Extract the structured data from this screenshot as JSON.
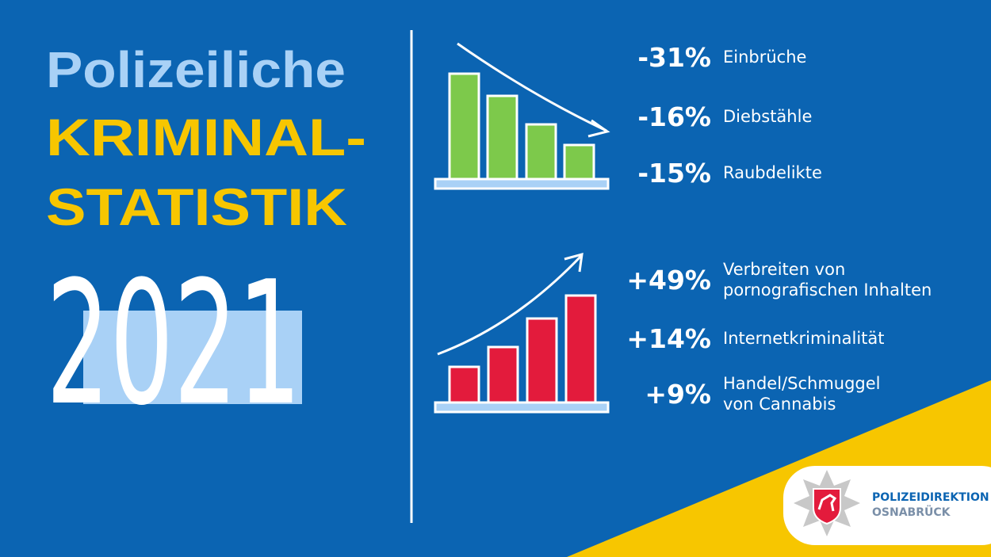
{
  "title": {
    "line1": "Polizeiliche",
    "line2": "KRIMINAL-",
    "line3": "STATISTIK",
    "year": "2021"
  },
  "decreases": [
    {
      "change": "-31%",
      "label": [
        "Einbrüche"
      ]
    },
    {
      "change": "-16%",
      "label": [
        "Diebstähle"
      ]
    },
    {
      "change": "-15%",
      "label": [
        "Raubdelikte"
      ]
    }
  ],
  "increases": [
    {
      "change": "+49%",
      "label": [
        "Verbreiten von",
        "pornografischen Inhalten"
      ]
    },
    {
      "change": "+14%",
      "label": [
        "Internetkriminalität"
      ]
    },
    {
      "change": "+9%",
      "label": [
        "Handel/Schmuggel",
        "von Cannabis"
      ]
    }
  ],
  "logo": {
    "line1": "POLIZEIDIREKTION",
    "line2": "OSNABRÜCK"
  }
}
